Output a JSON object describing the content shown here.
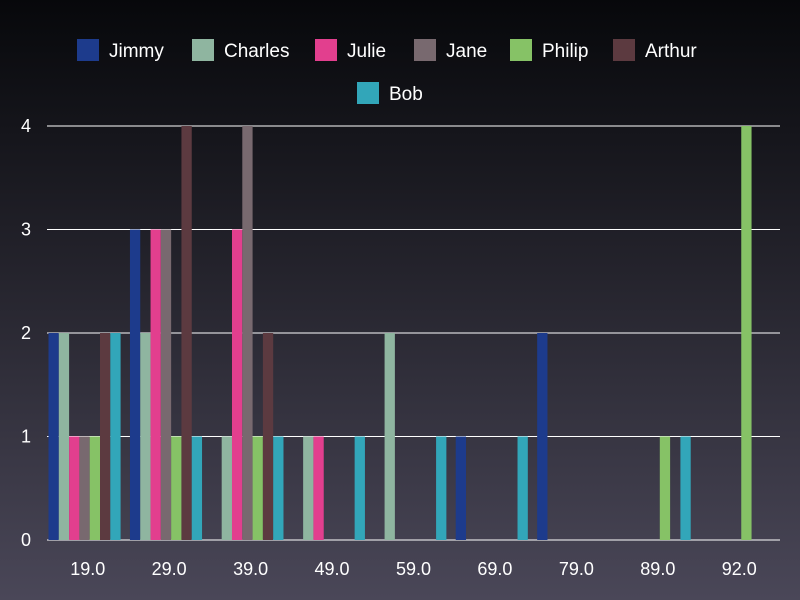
{
  "chart_data": {
    "type": "bar",
    "categories": [
      "19.0",
      "29.0",
      "39.0",
      "49.0",
      "59.0",
      "69.0",
      "79.0",
      "89.0",
      "92.0"
    ],
    "series": [
      {
        "name": "Jimmy",
        "color": "#1d3b8c",
        "values": [
          2,
          3,
          0,
          0,
          0,
          1,
          2,
          0,
          0
        ]
      },
      {
        "name": "Charles",
        "color": "#8fb5a0",
        "values": [
          2,
          2,
          1,
          1,
          2,
          0,
          0,
          0,
          0
        ]
      },
      {
        "name": "Julie",
        "color": "#e23f8e",
        "values": [
          1,
          3,
          3,
          1,
          0,
          0,
          0,
          0,
          0
        ]
      },
      {
        "name": "Jane",
        "color": "#78696f",
        "values": [
          1,
          3,
          4,
          0,
          0,
          0,
          0,
          0,
          0
        ]
      },
      {
        "name": "Philip",
        "color": "#86c266",
        "values": [
          1,
          1,
          1,
          0,
          0,
          0,
          0,
          1,
          4
        ]
      },
      {
        "name": "Arthur",
        "color": "#5c3a40",
        "values": [
          2,
          4,
          2,
          0,
          0,
          0,
          0,
          0,
          0
        ]
      },
      {
        "name": "Bob",
        "color": "#32a6b9",
        "values": [
          2,
          1,
          1,
          1,
          1,
          1,
          0,
          1,
          0
        ]
      }
    ],
    "yticks": [
      "0",
      "1",
      "2",
      "3",
      "4"
    ],
    "ylim": [
      0,
      4
    ],
    "grid": true,
    "legend_position": "top"
  }
}
